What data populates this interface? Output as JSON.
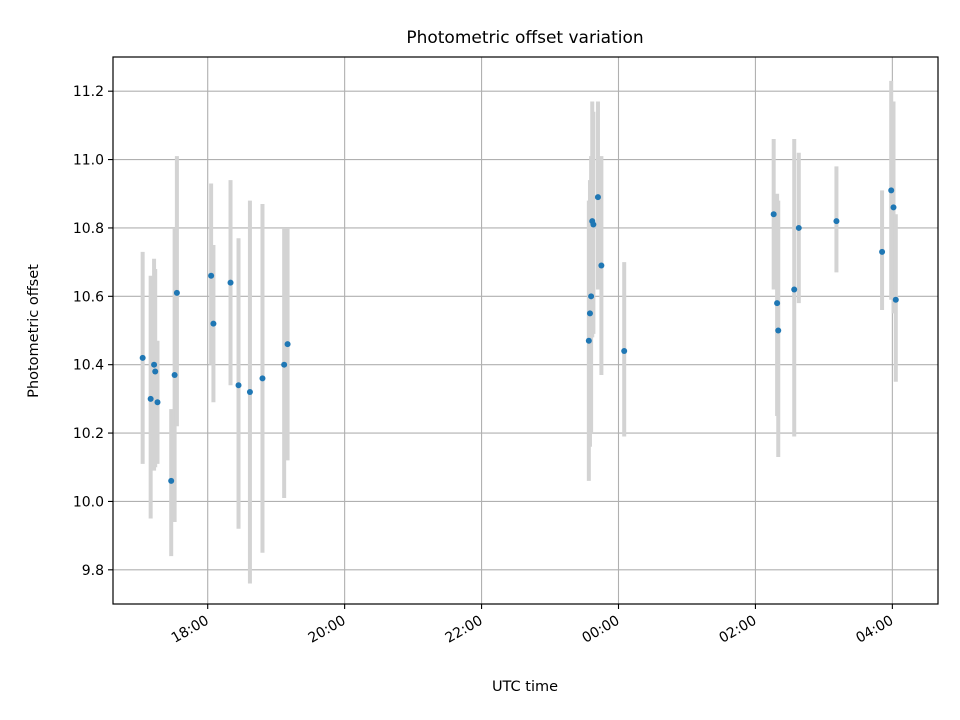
{
  "chart_data": {
    "type": "scatter",
    "title": "Photometric offset variation",
    "xlabel": "UTC time",
    "ylabel": "Photometric offset",
    "x_axis": {
      "kind": "time",
      "range": [
        "16:37",
        "04:40"
      ],
      "ticks": [
        "18:00",
        "20:00",
        "22:00",
        "00:00",
        "02:00",
        "04:00"
      ]
    },
    "y_axis": {
      "range": [
        9.7,
        11.3
      ],
      "ticks": [
        "9.8",
        "10.0",
        "10.2",
        "10.4",
        "10.6",
        "10.8",
        "11.0",
        "11.2"
      ]
    },
    "grid": true,
    "marker_color": "#1f77b4",
    "errorbar_color": "#d3d3d3",
    "series": [
      {
        "points": [
          {
            "t": "17:03",
            "y": 10.42,
            "lo": 10.11,
            "hi": 10.73
          },
          {
            "t": "17:10",
            "y": 10.3,
            "lo": 9.95,
            "hi": 10.66
          },
          {
            "t": "17:13",
            "y": 10.4,
            "lo": 10.09,
            "hi": 10.71
          },
          {
            "t": "17:14",
            "y": 10.38,
            "lo": 10.1,
            "hi": 10.68
          },
          {
            "t": "17:16",
            "y": 10.29,
            "lo": 10.11,
            "hi": 10.47
          },
          {
            "t": "17:28",
            "y": 10.06,
            "lo": 9.84,
            "hi": 10.27
          },
          {
            "t": "17:31",
            "y": 10.37,
            "lo": 9.94,
            "hi": 10.8
          },
          {
            "t": "17:33",
            "y": 10.61,
            "lo": 10.22,
            "hi": 11.01
          },
          {
            "t": "18:03",
            "y": 10.66,
            "lo": 10.4,
            "hi": 10.93
          },
          {
            "t": "18:05",
            "y": 10.52,
            "lo": 10.29,
            "hi": 10.75
          },
          {
            "t": "18:20",
            "y": 10.64,
            "lo": 10.34,
            "hi": 10.94
          },
          {
            "t": "18:27",
            "y": 10.34,
            "lo": 9.92,
            "hi": 10.77
          },
          {
            "t": "18:37",
            "y": 10.32,
            "lo": 9.76,
            "hi": 10.88
          },
          {
            "t": "18:48",
            "y": 10.36,
            "lo": 9.85,
            "hi": 10.87
          },
          {
            "t": "19:07",
            "y": 10.4,
            "lo": 10.01,
            "hi": 10.8
          },
          {
            "t": "19:10",
            "y": 10.46,
            "lo": 10.12,
            "hi": 10.8
          },
          {
            "t": "23:34",
            "y": 10.47,
            "lo": 10.06,
            "hi": 10.88
          },
          {
            "t": "23:35",
            "y": 10.55,
            "lo": 10.16,
            "hi": 10.94
          },
          {
            "t": "23:36",
            "y": 10.6,
            "lo": 10.2,
            "hi": 11.01
          },
          {
            "t": "23:37",
            "y": 10.82,
            "lo": 10.48,
            "hi": 11.17
          },
          {
            "t": "23:38",
            "y": 10.81,
            "lo": 10.49,
            "hi": 11.14
          },
          {
            "t": "23:42",
            "y": 10.89,
            "lo": 10.62,
            "hi": 11.17
          },
          {
            "t": "23:45",
            "y": 10.69,
            "lo": 10.37,
            "hi": 11.01
          },
          {
            "t": "00:05",
            "y": 10.44,
            "lo": 10.19,
            "hi": 10.7
          },
          {
            "t": "02:16",
            "y": 10.84,
            "lo": 10.62,
            "hi": 11.06
          },
          {
            "t": "02:19",
            "y": 10.58,
            "lo": 10.25,
            "hi": 10.9
          },
          {
            "t": "02:20",
            "y": 10.5,
            "lo": 10.13,
            "hi": 10.88
          },
          {
            "t": "02:34",
            "y": 10.62,
            "lo": 10.19,
            "hi": 11.06
          },
          {
            "t": "02:38",
            "y": 10.8,
            "lo": 10.58,
            "hi": 11.02
          },
          {
            "t": "03:11",
            "y": 10.82,
            "lo": 10.67,
            "hi": 10.98
          },
          {
            "t": "03:51",
            "y": 10.73,
            "lo": 10.56,
            "hi": 10.91
          },
          {
            "t": "03:59",
            "y": 10.91,
            "lo": 10.59,
            "hi": 11.23
          },
          {
            "t": "04:01",
            "y": 10.86,
            "lo": 10.55,
            "hi": 11.17
          },
          {
            "t": "04:03",
            "y": 10.59,
            "lo": 10.35,
            "hi": 10.84
          }
        ]
      }
    ]
  }
}
